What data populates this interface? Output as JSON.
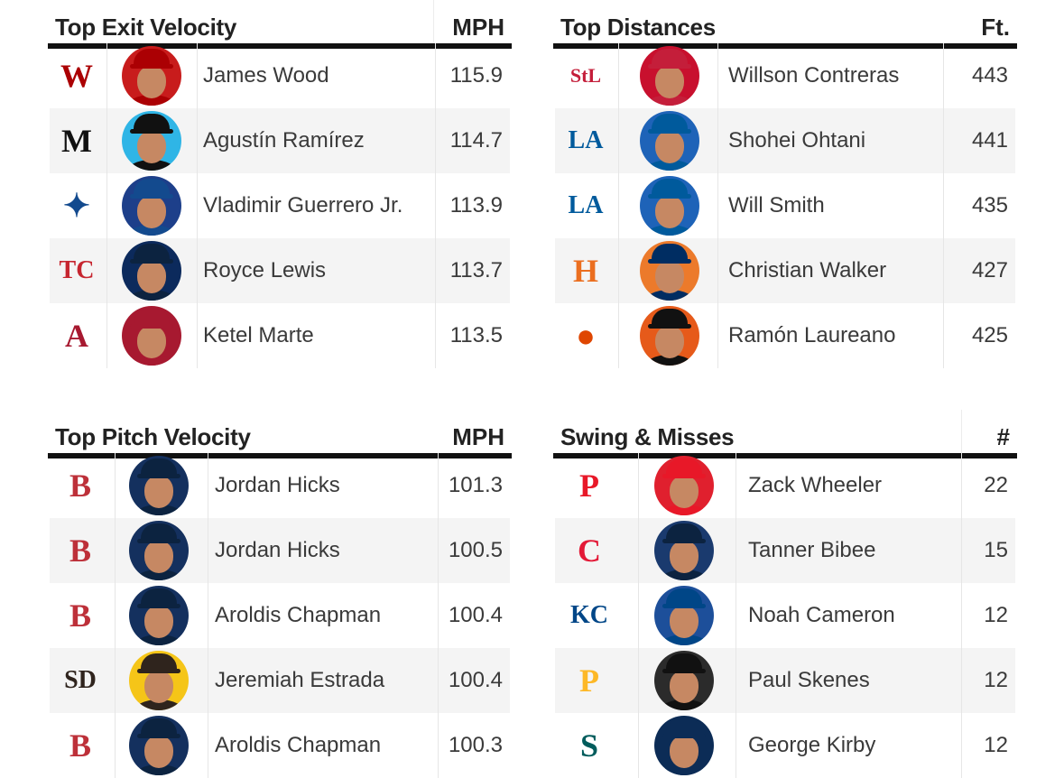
{
  "panels": [
    {
      "title": "Top Exit Velocity",
      "unit": "MPH",
      "rows": [
        {
          "team_icon": "nationals-logo-icon",
          "logo_text": "W",
          "logo_color": "#ab0003",
          "cap_color": "#ab0003",
          "bg_color": "#c81c1c",
          "name": "James Wood",
          "value": "115.9"
        },
        {
          "team_icon": "marlins-logo-icon",
          "logo_text": "M",
          "logo_color": "#111111",
          "cap_color": "#111111",
          "bg_color": "#2fb5e6",
          "name": "Agustín Ramírez",
          "value": "114.7"
        },
        {
          "team_icon": "blue-jays-logo-icon",
          "logo_text": "✦",
          "logo_color": "#134a8e",
          "cap_color": "#134a8e",
          "bg_color": "#1d3f8a",
          "name": "Vladimir Guerrero Jr.",
          "value": "113.9"
        },
        {
          "team_icon": "twins-logo-icon",
          "logo_text": "TC",
          "logo_color": "#c6252f",
          "cap_color": "#0c2340",
          "bg_color": "#0c2a5c",
          "name": "Royce Lewis",
          "value": "113.7"
        },
        {
          "team_icon": "diamondbacks-logo-icon",
          "logo_text": "A",
          "logo_color": "#a71930",
          "cap_color": "#a71930",
          "bg_color": "#a71930",
          "name": "Ketel Marte",
          "value": "113.5"
        }
      ]
    },
    {
      "title": "Top Distances",
      "unit": "Ft.",
      "rows": [
        {
          "team_icon": "cardinals-logo-icon",
          "logo_text": "StL",
          "logo_color": "#c41e3a",
          "cap_color": "#c41e3a",
          "bg_color": "#c8102e",
          "name": "Willson Contreras",
          "value": "443"
        },
        {
          "team_icon": "dodgers-logo-icon",
          "logo_text": "LA",
          "logo_color": "#005a9c",
          "cap_color": "#005a9c",
          "bg_color": "#1e63b8",
          "name": "Shohei Ohtani",
          "value": "441"
        },
        {
          "team_icon": "dodgers-logo-icon",
          "logo_text": "LA",
          "logo_color": "#005a9c",
          "cap_color": "#005a9c",
          "bg_color": "#1e63b8",
          "name": "Will Smith",
          "value": "435"
        },
        {
          "team_icon": "astros-logo-icon",
          "logo_text": "H",
          "logo_color": "#eb6e1f",
          "cap_color": "#002d62",
          "bg_color": "#ec7a2b",
          "name": "Christian Walker",
          "value": "427"
        },
        {
          "team_icon": "orioles-logo-icon",
          "logo_text": "●",
          "logo_color": "#df4601",
          "cap_color": "#111111",
          "bg_color": "#e65a1a",
          "name": "Ramón Laureano",
          "value": "425"
        }
      ]
    },
    {
      "title": "Top Pitch Velocity",
      "unit": "MPH",
      "rows": [
        {
          "team_icon": "red-sox-logo-icon",
          "logo_text": "B",
          "logo_color": "#bd3039",
          "cap_color": "#0c2340",
          "bg_color": "#14305e",
          "name": "Jordan Hicks",
          "value": "101.3"
        },
        {
          "team_icon": "red-sox-logo-icon",
          "logo_text": "B",
          "logo_color": "#bd3039",
          "cap_color": "#0c2340",
          "bg_color": "#14305e",
          "name": "Jordan Hicks",
          "value": "100.5"
        },
        {
          "team_icon": "red-sox-logo-icon",
          "logo_text": "B",
          "logo_color": "#bd3039",
          "cap_color": "#0c2340",
          "bg_color": "#14305e",
          "name": "Aroldis Chapman",
          "value": "100.4"
        },
        {
          "team_icon": "padres-logo-icon",
          "logo_text": "SD",
          "logo_color": "#2f241d",
          "cap_color": "#2f241d",
          "bg_color": "#f5c518",
          "name": "Jeremiah Estrada",
          "value": "100.4"
        },
        {
          "team_icon": "red-sox-logo-icon",
          "logo_text": "B",
          "logo_color": "#bd3039",
          "cap_color": "#0c2340",
          "bg_color": "#14305e",
          "name": "Aroldis Chapman",
          "value": "100.3"
        }
      ]
    },
    {
      "title": "Swing & Misses",
      "unit": "#",
      "rows": [
        {
          "team_icon": "phillies-logo-icon",
          "logo_text": "P",
          "logo_color": "#e81828",
          "cap_color": "#e81828",
          "bg_color": "#e0202e",
          "name": "Zack Wheeler",
          "value": "22"
        },
        {
          "team_icon": "guardians-logo-icon",
          "logo_text": "C",
          "logo_color": "#e31937",
          "cap_color": "#0c2340",
          "bg_color": "#1a3a6e",
          "name": "Tanner Bibee",
          "value": "15"
        },
        {
          "team_icon": "royals-logo-icon",
          "logo_text": "KC",
          "logo_color": "#004687",
          "cap_color": "#004687",
          "bg_color": "#1d4f9a",
          "name": "Noah Cameron",
          "value": "12"
        },
        {
          "team_icon": "pirates-logo-icon",
          "logo_text": "P",
          "logo_color": "#fdb827",
          "cap_color": "#111111",
          "bg_color": "#2b2b2b",
          "name": "Paul Skenes",
          "value": "12"
        },
        {
          "team_icon": "mariners-logo-icon",
          "logo_text": "S",
          "logo_color": "#005c5c",
          "cap_color": "#0c2c56",
          "bg_color": "#0c2c56",
          "name": "George Kirby",
          "value": "12"
        }
      ]
    }
  ]
}
